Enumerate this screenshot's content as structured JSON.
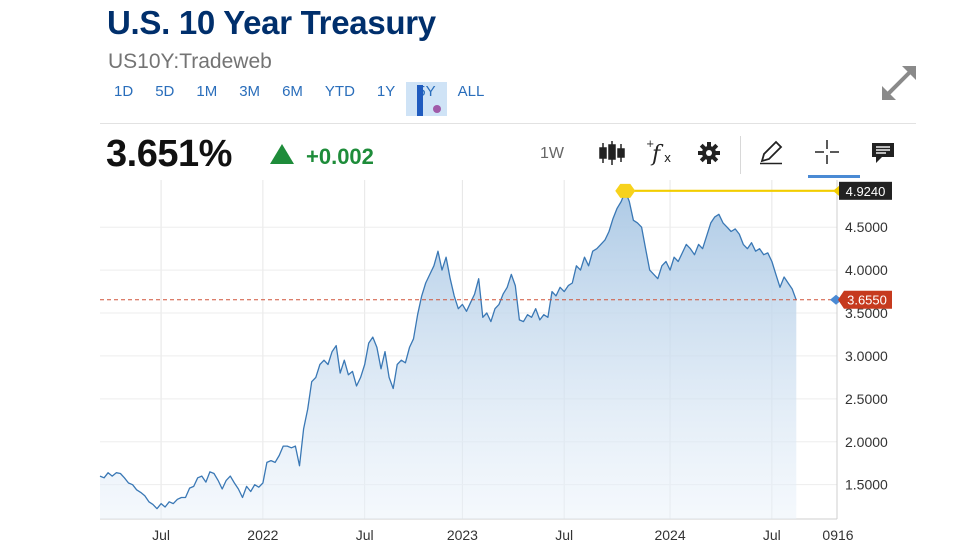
{
  "header": {
    "title": "U.S. 10 Year Treasury",
    "symbol": "US10Y:Tradeweb"
  },
  "ranges": [
    {
      "label": "1D",
      "active": false
    },
    {
      "label": "5D",
      "active": false
    },
    {
      "label": "1M",
      "active": false
    },
    {
      "label": "3M",
      "active": false
    },
    {
      "label": "6M",
      "active": false
    },
    {
      "label": "YTD",
      "active": false
    },
    {
      "label": "1Y",
      "active": false
    },
    {
      "label": "5Y",
      "active": true
    },
    {
      "label": "ALL",
      "active": false
    }
  ],
  "quote": {
    "price": "3.651%",
    "change": "+0.002",
    "direction": "up",
    "up_color": "#1e8c3a"
  },
  "toolbar": {
    "interval": "1W",
    "icons": [
      "candlestick-icon",
      "function-icon",
      "gear-icon",
      "pencil-icon",
      "crosshair-icon",
      "comment-icon"
    ]
  },
  "chart_data": {
    "type": "area",
    "x_unit": "weeks",
    "x_tick_labels": [
      {
        "label": "Jul",
        "x": 4
      },
      {
        "label": "2022",
        "x": 29
      },
      {
        "label": "Jul",
        "x": 54
      },
      {
        "label": "2023",
        "x": 78
      },
      {
        "label": "Jul",
        "x": 103
      },
      {
        "label": "2024",
        "x": 129
      },
      {
        "label": "Jul",
        "x": 154
      },
      {
        "label": "0916",
        "x": 165
      }
    ],
    "y_ticks": [
      "1.5000",
      "2.0000",
      "2.5000",
      "3.0000",
      "3.5000",
      "4.0000",
      "4.5000"
    ],
    "ylim": [
      1.1,
      5.05
    ],
    "xlim": [
      -11,
      170
    ],
    "grid": true,
    "series": [
      {
        "color": "#3a78b5",
        "values": [
          [
            -11,
            1.6
          ],
          [
            -10,
            1.58
          ],
          [
            -9,
            1.64
          ],
          [
            -8,
            1.6
          ],
          [
            -7,
            1.64
          ],
          [
            -6,
            1.63
          ],
          [
            -5,
            1.58
          ],
          [
            -4,
            1.52
          ],
          [
            -3,
            1.5
          ],
          [
            -2,
            1.44
          ],
          [
            -1,
            1.41
          ],
          [
            0,
            1.37
          ],
          [
            1,
            1.3
          ],
          [
            2,
            1.27
          ],
          [
            3,
            1.22
          ],
          [
            4,
            1.28
          ],
          [
            5,
            1.24
          ],
          [
            6,
            1.3
          ],
          [
            7,
            1.28
          ],
          [
            8,
            1.33
          ],
          [
            9,
            1.35
          ],
          [
            10,
            1.35
          ],
          [
            11,
            1.46
          ],
          [
            12,
            1.48
          ],
          [
            13,
            1.58
          ],
          [
            14,
            1.6
          ],
          [
            15,
            1.53
          ],
          [
            16,
            1.65
          ],
          [
            17,
            1.63
          ],
          [
            18,
            1.55
          ],
          [
            19,
            1.45
          ],
          [
            20,
            1.55
          ],
          [
            21,
            1.6
          ],
          [
            22,
            1.52
          ],
          [
            23,
            1.45
          ],
          [
            24,
            1.35
          ],
          [
            25,
            1.48
          ],
          [
            26,
            1.42
          ],
          [
            27,
            1.5
          ],
          [
            28,
            1.47
          ],
          [
            29,
            1.52
          ],
          [
            30,
            1.76
          ],
          [
            31,
            1.78
          ],
          [
            32,
            1.76
          ],
          [
            33,
            1.84
          ],
          [
            34,
            1.95
          ],
          [
            35,
            1.95
          ],
          [
            36,
            1.93
          ],
          [
            37,
            1.95
          ],
          [
            38,
            1.72
          ],
          [
            39,
            2.15
          ],
          [
            40,
            2.38
          ],
          [
            41,
            2.7
          ],
          [
            42,
            2.75
          ],
          [
            43,
            2.9
          ],
          [
            44,
            2.95
          ],
          [
            45,
            2.9
          ],
          [
            46,
            3.05
          ],
          [
            47,
            3.12
          ],
          [
            48,
            2.8
          ],
          [
            49,
            2.95
          ],
          [
            50,
            2.78
          ],
          [
            51,
            2.82
          ],
          [
            52,
            2.65
          ],
          [
            53,
            2.75
          ],
          [
            54,
            2.9
          ],
          [
            55,
            3.15
          ],
          [
            56,
            3.22
          ],
          [
            57,
            3.1
          ],
          [
            58,
            2.85
          ],
          [
            59,
            3.05
          ],
          [
            60,
            2.75
          ],
          [
            61,
            2.62
          ],
          [
            62,
            2.9
          ],
          [
            63,
            2.95
          ],
          [
            64,
            2.92
          ],
          [
            65,
            3.1
          ],
          [
            66,
            3.2
          ],
          [
            67,
            3.48
          ],
          [
            68,
            3.7
          ],
          [
            69,
            3.85
          ],
          [
            70,
            3.95
          ],
          [
            71,
            4.05
          ],
          [
            72,
            4.22
          ],
          [
            73,
            4.0
          ],
          [
            74,
            4.15
          ],
          [
            75,
            3.9
          ],
          [
            76,
            3.7
          ],
          [
            77,
            3.55
          ],
          [
            78,
            3.6
          ],
          [
            79,
            3.52
          ],
          [
            80,
            3.62
          ],
          [
            81,
            3.72
          ],
          [
            82,
            3.9
          ],
          [
            83,
            3.45
          ],
          [
            84,
            3.5
          ],
          [
            85,
            3.4
          ],
          [
            86,
            3.55
          ],
          [
            87,
            3.6
          ],
          [
            88,
            3.72
          ],
          [
            89,
            3.8
          ],
          [
            90,
            3.95
          ],
          [
            91,
            3.82
          ],
          [
            92,
            3.42
          ],
          [
            93,
            3.4
          ],
          [
            94,
            3.48
          ],
          [
            95,
            3.45
          ],
          [
            96,
            3.55
          ],
          [
            97,
            3.42
          ],
          [
            98,
            3.48
          ],
          [
            99,
            3.45
          ],
          [
            100,
            3.75
          ],
          [
            101,
            3.7
          ],
          [
            102,
            3.8
          ],
          [
            103,
            3.75
          ],
          [
            104,
            3.82
          ],
          [
            105,
            3.85
          ],
          [
            106,
            4.05
          ],
          [
            107,
            4.0
          ],
          [
            108,
            4.15
          ],
          [
            109,
            4.05
          ],
          [
            110,
            4.22
          ],
          [
            111,
            4.25
          ],
          [
            112,
            4.3
          ],
          [
            113,
            4.35
          ],
          [
            114,
            4.45
          ],
          [
            115,
            4.6
          ],
          [
            116,
            4.72
          ],
          [
            117,
            4.8
          ],
          [
            118,
            4.92
          ],
          [
            119,
            4.8
          ],
          [
            120,
            4.58
          ],
          [
            121,
            4.55
          ],
          [
            122,
            4.5
          ],
          [
            123,
            4.25
          ],
          [
            124,
            4.0
          ],
          [
            125,
            3.95
          ],
          [
            126,
            3.9
          ],
          [
            127,
            4.05
          ],
          [
            128,
            4.1
          ],
          [
            129,
            4.0
          ],
          [
            130,
            4.15
          ],
          [
            131,
            4.1
          ],
          [
            132,
            4.2
          ],
          [
            133,
            4.3
          ],
          [
            134,
            4.25
          ],
          [
            135,
            4.18
          ],
          [
            136,
            4.3
          ],
          [
            137,
            4.25
          ],
          [
            138,
            4.4
          ],
          [
            139,
            4.55
          ],
          [
            140,
            4.62
          ],
          [
            141,
            4.65
          ],
          [
            142,
            4.55
          ],
          [
            143,
            4.5
          ],
          [
            144,
            4.45
          ],
          [
            145,
            4.48
          ],
          [
            146,
            4.42
          ],
          [
            147,
            4.3
          ],
          [
            148,
            4.25
          ],
          [
            149,
            4.32
          ],
          [
            150,
            4.22
          ],
          [
            151,
            4.25
          ],
          [
            152,
            4.18
          ],
          [
            153,
            4.2
          ],
          [
            154,
            4.1
          ],
          [
            155,
            3.95
          ],
          [
            156,
            3.8
          ],
          [
            157,
            3.92
          ],
          [
            158,
            3.85
          ],
          [
            159,
            3.78
          ],
          [
            160,
            3.65
          ]
        ]
      }
    ],
    "high_marker": {
      "label": "4.9240",
      "value": 4.924,
      "x": 118
    },
    "last_marker": {
      "label": "3.6550",
      "value": 3.655
    },
    "reference_line": 3.655
  }
}
